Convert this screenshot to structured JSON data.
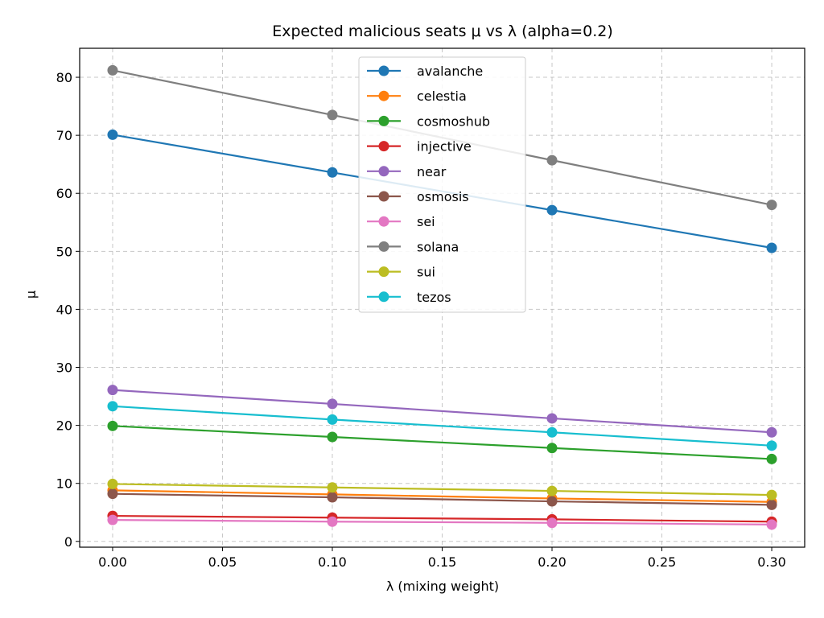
{
  "chart_data": {
    "type": "line",
    "title": "Expected malicious seats μ vs λ (alpha=0.2)",
    "xlabel": "λ (mixing weight)",
    "ylabel": "μ",
    "xlim": [
      -0.015,
      0.315
    ],
    "ylim": [
      -1,
      85
    ],
    "grid": true,
    "legend_position": "upper-center",
    "x_ticks": [
      "0.00",
      "0.05",
      "0.10",
      "0.15",
      "0.20",
      "0.25",
      "0.30"
    ],
    "y_ticks": [
      "0",
      "10",
      "20",
      "30",
      "40",
      "50",
      "60",
      "70",
      "80"
    ],
    "x": [
      0.0,
      0.1,
      0.2,
      0.3
    ],
    "series": [
      {
        "name": "avalanche",
        "color": "#1f77b4",
        "values": [
          70.1,
          63.6,
          57.1,
          50.6
        ]
      },
      {
        "name": "celestia",
        "color": "#ff7f0e",
        "values": [
          8.8,
          8.1,
          7.4,
          6.8
        ]
      },
      {
        "name": "cosmoshub",
        "color": "#2ca02c",
        "values": [
          19.9,
          18.0,
          16.1,
          14.2
        ]
      },
      {
        "name": "injective",
        "color": "#d62728",
        "values": [
          4.4,
          4.1,
          3.8,
          3.4
        ]
      },
      {
        "name": "near",
        "color": "#9467bd",
        "values": [
          26.1,
          23.7,
          21.2,
          18.8
        ]
      },
      {
        "name": "osmosis",
        "color": "#8c564b",
        "values": [
          8.2,
          7.6,
          6.9,
          6.3
        ]
      },
      {
        "name": "sei",
        "color": "#e377c2",
        "values": [
          3.7,
          3.4,
          3.2,
          2.9
        ]
      },
      {
        "name": "solana",
        "color": "#7f7f7f",
        "values": [
          81.2,
          73.5,
          65.7,
          58.0
        ]
      },
      {
        "name": "sui",
        "color": "#bcbd22",
        "values": [
          9.9,
          9.3,
          8.7,
          8.0
        ]
      },
      {
        "name": "tezos",
        "color": "#17becf",
        "values": [
          23.3,
          21.0,
          18.8,
          16.5
        ]
      }
    ]
  }
}
